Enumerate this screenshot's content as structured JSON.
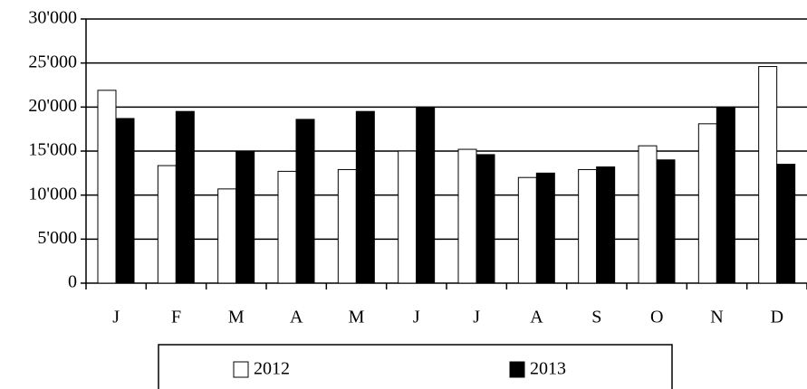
{
  "chart_data": {
    "type": "bar",
    "categories": [
      "J",
      "F",
      "M",
      "A",
      "M",
      "J",
      "J",
      "A",
      "S",
      "O",
      "N",
      "D"
    ],
    "series": [
      {
        "name": "2012",
        "color": "#ffffff",
        "values": [
          21900,
          13350,
          10700,
          12700,
          12900,
          15000,
          15200,
          12000,
          12900,
          15600,
          18100,
          24600
        ]
      },
      {
        "name": "2013",
        "color": "#000000",
        "values": [
          18700,
          19500,
          15000,
          18600,
          19500,
          20000,
          14600,
          12500,
          13200,
          14000,
          20000,
          13500
        ]
      }
    ],
    "ylim": [
      0,
      30000
    ],
    "yticks": [
      0,
      {
        "value": 5000,
        "label": "5'000"
      },
      {
        "value": 10000,
        "label": "10'000"
      },
      {
        "value": 15000,
        "label": "15'000"
      },
      {
        "value": 20000,
        "label": "20'000"
      },
      {
        "value": 25000,
        "label": "25'000"
      },
      {
        "value": 30000,
        "label": "30'000"
      }
    ],
    "grid": true,
    "legend": "bottom"
  }
}
